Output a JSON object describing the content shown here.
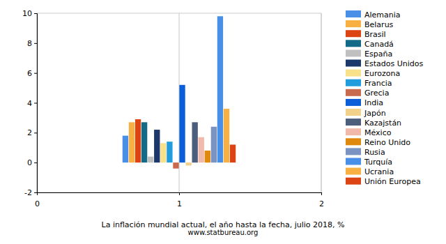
{
  "chart_data": {
    "type": "bar",
    "title": "La inflación mundial actual, el año hasta la fecha, julio 2018, %",
    "subtitle": "www.statbureau.org",
    "x": [
      1
    ],
    "xlim": [
      0,
      2
    ],
    "xticks": [
      0,
      1,
      2
    ],
    "ylim": [
      -2,
      10
    ],
    "yticks": [
      -2,
      0,
      2,
      4,
      6,
      8,
      10
    ],
    "grid": "x",
    "legend": "right",
    "series": [
      {
        "name": "Alemania",
        "color": "#4a8fe7",
        "values": [
          1.8
        ]
      },
      {
        "name": "Belarus",
        "color": "#f9b042",
        "values": [
          2.7
        ]
      },
      {
        "name": "Brasil",
        "color": "#dc4413",
        "values": [
          2.9
        ]
      },
      {
        "name": "Canadá",
        "color": "#116a87",
        "values": [
          2.7
        ]
      },
      {
        "name": "España",
        "color": "#c0c0c0",
        "values": [
          0.4
        ]
      },
      {
        "name": "Estados Unidos",
        "color": "#1c386b",
        "values": [
          2.2
        ]
      },
      {
        "name": "Eurozona",
        "color": "#f9e08a",
        "values": [
          1.3
        ]
      },
      {
        "name": "Francia",
        "color": "#219dde",
        "values": [
          1.4
        ]
      },
      {
        "name": "Grecia",
        "color": "#c96a4e",
        "values": [
          -0.4
        ]
      },
      {
        "name": "India",
        "color": "#0b5ed7",
        "values": [
          5.2
        ]
      },
      {
        "name": "Japón",
        "color": "#f2d18b",
        "values": [
          -0.2
        ]
      },
      {
        "name": "Kazajstán",
        "color": "#4b5e7c",
        "values": [
          2.7
        ]
      },
      {
        "name": "México",
        "color": "#f1b9a9",
        "values": [
          1.7
        ]
      },
      {
        "name": "Reino Unido",
        "color": "#e0890f",
        "values": [
          0.8
        ]
      },
      {
        "name": "Rusia",
        "color": "#7b93c1",
        "values": [
          2.4
        ]
      },
      {
        "name": "Turquía",
        "color": "#4a8fe7",
        "values": [
          9.8
        ]
      },
      {
        "name": "Ucrania",
        "color": "#f9b042",
        "values": [
          3.6
        ]
      },
      {
        "name": "Unión Europea",
        "color": "#dc4413",
        "values": [
          1.2
        ]
      }
    ]
  }
}
